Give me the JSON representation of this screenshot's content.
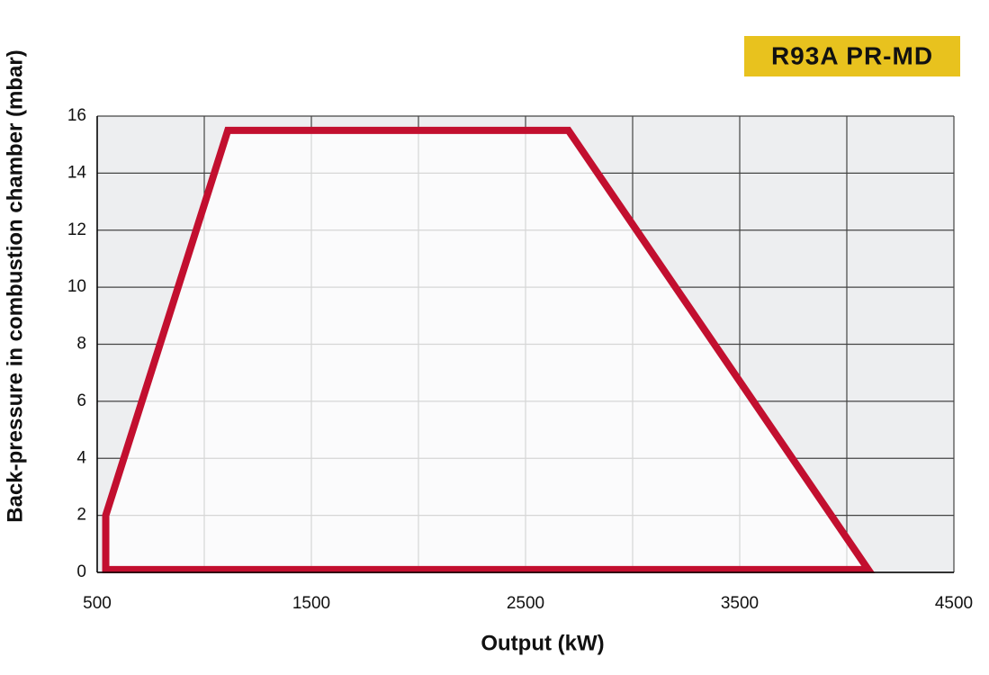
{
  "chart_data": {
    "type": "polygon",
    "title": "R93A PR-MD",
    "x_label": "Output (kW)",
    "y_label": "Back-pressure in combustion chamber (mbar)",
    "x": [
      540,
      540,
      1110,
      2700,
      4100
    ],
    "series": [
      {
        "color": "#c20f2f",
        "values": [
          0.1,
          2,
          15.5,
          15.5,
          0.1
        ]
      }
    ],
    "xlim": [
      500,
      4500
    ],
    "xticks": [
      500,
      1500,
      2500,
      3500,
      4500
    ],
    "x_minor_grid": [
      1000,
      2000,
      3000,
      4000
    ],
    "ylim": [
      0,
      16
    ],
    "yticks": [
      0,
      2,
      4,
      6,
      8,
      10,
      12,
      14,
      16
    ],
    "grid": true,
    "title_color": "#e8c21e"
  }
}
